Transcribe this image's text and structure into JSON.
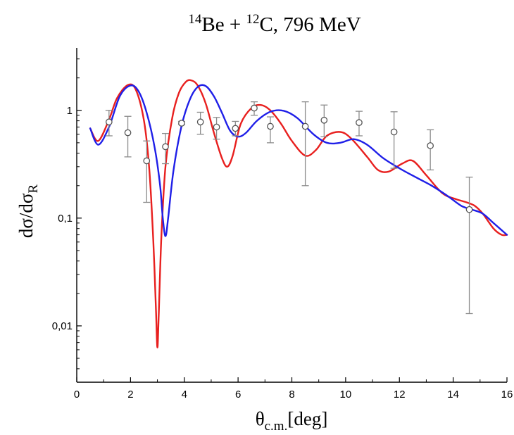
{
  "chart_data": {
    "type": "line",
    "title": {
      "parts": [
        {
          "text": "14",
          "sup": true
        },
        {
          "text": "Be + ",
          "sup": false
        },
        {
          "text": "12",
          "sup": true
        },
        {
          "text": "C, 796 MeV",
          "sup": false
        }
      ]
    },
    "xlabel": {
      "main": "θ",
      "sub": "c.m.",
      "tail": "[deg]"
    },
    "ylabel": {
      "main": "dσ/dσ",
      "sub": "R"
    },
    "xlim": [
      0,
      16
    ],
    "ylim": [
      0.003,
      3.8
    ],
    "yscale": "log",
    "x_ticks": [
      0,
      2,
      4,
      6,
      8,
      10,
      12,
      14,
      16
    ],
    "x_tick_labels": [
      "0",
      "2",
      "4",
      "6",
      "8",
      "10",
      "12",
      "14",
      "16"
    ],
    "y_ticks": [
      0.01,
      0.1,
      1
    ],
    "y_tick_labels": [
      "0,01",
      "0,1",
      "1"
    ],
    "grid": false,
    "colors": {
      "red": "#e8201f",
      "blue": "#1f1fe8",
      "points": "#555555",
      "errorbars": "#8c8c8c"
    },
    "series": [
      {
        "color": "red",
        "x": [
          0.5,
          0.8,
          1.2,
          1.5,
          1.9,
          2.2,
          2.5,
          2.7,
          2.85,
          2.95,
          3.0,
          3.05,
          3.15,
          3.3,
          3.55,
          3.8,
          4.05,
          4.25,
          4.5,
          4.8,
          5.1,
          5.4,
          5.6,
          5.8,
          6.1,
          6.5,
          6.85,
          7.2,
          7.6,
          8.0,
          8.5,
          8.9,
          9.3,
          9.8,
          10.2,
          10.8,
          11.2,
          11.6,
          12.1,
          12.5,
          13.0,
          13.6,
          14.1,
          14.5,
          14.8,
          15.1,
          15.5,
          15.8,
          16.0
        ],
        "y": [
          0.68,
          0.52,
          0.82,
          1.3,
          1.72,
          1.55,
          0.8,
          0.28,
          0.06,
          0.013,
          0.0063,
          0.013,
          0.07,
          0.3,
          0.85,
          1.45,
          1.83,
          1.9,
          1.7,
          1.15,
          0.62,
          0.36,
          0.3,
          0.38,
          0.75,
          1.05,
          1.12,
          1.0,
          0.75,
          0.52,
          0.38,
          0.43,
          0.58,
          0.63,
          0.55,
          0.37,
          0.28,
          0.27,
          0.32,
          0.34,
          0.25,
          0.17,
          0.15,
          0.14,
          0.13,
          0.11,
          0.08,
          0.07,
          0.07
        ]
      },
      {
        "color": "blue",
        "x": [
          0.5,
          0.8,
          1.2,
          1.6,
          2.0,
          2.3,
          2.6,
          2.9,
          3.1,
          3.2,
          3.3,
          3.4,
          3.6,
          3.9,
          4.2,
          4.5,
          4.8,
          5.1,
          5.4,
          5.7,
          6.0,
          6.3,
          6.7,
          7.2,
          7.7,
          8.2,
          8.8,
          9.3,
          9.8,
          10.3,
          10.8,
          11.4,
          12.0,
          12.6,
          13.2,
          13.8,
          14.3,
          14.7,
          15.1,
          15.5,
          16.0
        ],
        "y": [
          0.68,
          0.48,
          0.7,
          1.35,
          1.7,
          1.5,
          0.95,
          0.45,
          0.2,
          0.1,
          0.068,
          0.1,
          0.28,
          0.72,
          1.25,
          1.65,
          1.68,
          1.35,
          0.95,
          0.65,
          0.57,
          0.62,
          0.8,
          0.97,
          0.99,
          0.85,
          0.6,
          0.5,
          0.5,
          0.54,
          0.48,
          0.36,
          0.29,
          0.24,
          0.2,
          0.16,
          0.13,
          0.12,
          0.11,
          0.09,
          0.07
        ]
      },
      {
        "type": "scatter",
        "x": [
          1.2,
          1.9,
          2.6,
          3.3,
          3.9,
          4.6,
          5.2,
          5.9,
          6.6,
          7.2,
          8.5,
          9.2,
          10.5,
          11.8,
          13.15,
          14.6
        ],
        "y": [
          0.78,
          0.62,
          0.34,
          0.46,
          0.76,
          0.78,
          0.7,
          0.68,
          1.05,
          0.71,
          0.71,
          0.81,
          0.77,
          0.63,
          0.47,
          0.12
        ],
        "yerr_lo": [
          0.58,
          0.37,
          0.14,
          0.32,
          0.74,
          0.6,
          0.54,
          0.58,
          0.9,
          0.5,
          0.2,
          0.57,
          0.58,
          0.29,
          0.28,
          0.013
        ],
        "yerr_hi": [
          1.0,
          0.88,
          0.52,
          0.61,
          0.79,
          0.96,
          0.86,
          0.79,
          1.2,
          0.87,
          1.2,
          1.12,
          0.98,
          0.97,
          0.66,
          0.24
        ]
      }
    ]
  }
}
